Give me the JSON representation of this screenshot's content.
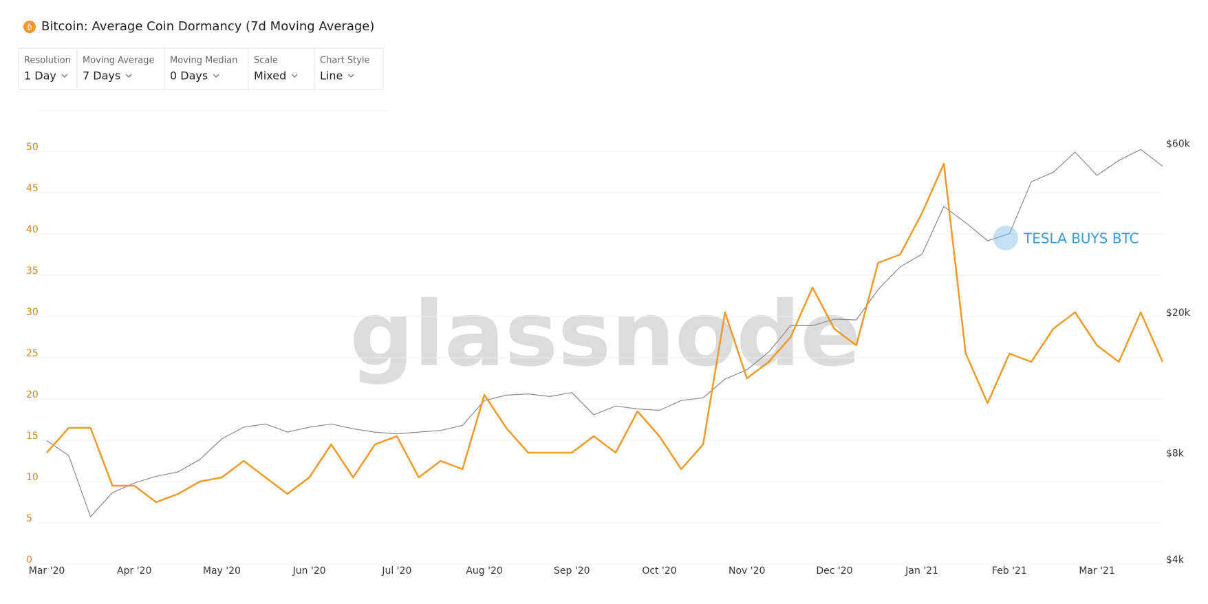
{
  "header": {
    "title": "Bitcoin: Average Coin Dormancy (7d Moving Average)",
    "controls": [
      {
        "label": "Resolution",
        "value": "1 Day"
      },
      {
        "label": "Moving Average",
        "value": "7 Days"
      },
      {
        "label": "Moving Median",
        "value": "0 Days"
      },
      {
        "label": "Scale",
        "value": "Mixed"
      },
      {
        "label": "Chart Style",
        "value": "Line"
      }
    ]
  },
  "chart_data": {
    "type": "line",
    "watermark": "glassnode",
    "annotation": "TESLA BUYS BTC",
    "categories": [
      "Mar '20",
      null,
      null,
      null,
      "Apr '20",
      null,
      null,
      null,
      "May '20",
      null,
      null,
      null,
      "Jun '20",
      null,
      null,
      null,
      "Jul '20",
      null,
      null,
      null,
      "Aug '20",
      null,
      null,
      null,
      "Sep '20",
      null,
      null,
      null,
      "Oct '20",
      null,
      null,
      null,
      "Nov '20",
      null,
      null,
      null,
      "Dec '20",
      null,
      null,
      null,
      "Jan '21",
      null,
      null,
      null,
      "Feb '21",
      null,
      null,
      null,
      "Mar '21",
      null,
      null,
      null
    ],
    "series": [
      {
        "color": "#f09a28",
        "axis": "y",
        "values": [
          13,
          16,
          16,
          9,
          9,
          7,
          8,
          9.5,
          10,
          12,
          10,
          8,
          10,
          14,
          10,
          14,
          15,
          10,
          12,
          11,
          20,
          16,
          13,
          13,
          13,
          15,
          13,
          18,
          15,
          11,
          14,
          30,
          22,
          24,
          27,
          33,
          28,
          26,
          36,
          37,
          42,
          48,
          25,
          19,
          25,
          24,
          28,
          30,
          26,
          24,
          30,
          24
        ]
      },
      {
        "color": "#8a8a8a",
        "axis": "y2",
        "values": [
          8700,
          7900,
          5300,
          6200,
          6600,
          6900,
          7100,
          7700,
          8800,
          9500,
          9700,
          9200,
          9500,
          9700,
          9400,
          9200,
          9100,
          9200,
          9300,
          9600,
          11300,
          11700,
          11800,
          11600,
          11900,
          10300,
          10900,
          10700,
          10600,
          11300,
          11500,
          13000,
          13800,
          15500,
          18400,
          18400,
          19200,
          19100,
          23300,
          27000,
          29300,
          40000,
          36000,
          32000,
          33500,
          47000,
          50000,
          57000,
          49000,
          54000,
          58000,
          52000
        ]
      }
    ],
    "ylim": [
      0,
      55
    ],
    "yticks": [
      0,
      5,
      10,
      15,
      20,
      25,
      30,
      35,
      40,
      45,
      50
    ],
    "ytick_color": "#d4891f",
    "y2lim": [
      4000,
      77000
    ],
    "y2scale": "log",
    "y2ticks": [
      {
        "value": 4000,
        "label": "$4k"
      },
      {
        "value": 8000,
        "label": "$8k"
      },
      {
        "value": 20000,
        "label": "$20k"
      },
      {
        "value": 60000,
        "label": "$60k"
      }
    ],
    "grid": true
  }
}
